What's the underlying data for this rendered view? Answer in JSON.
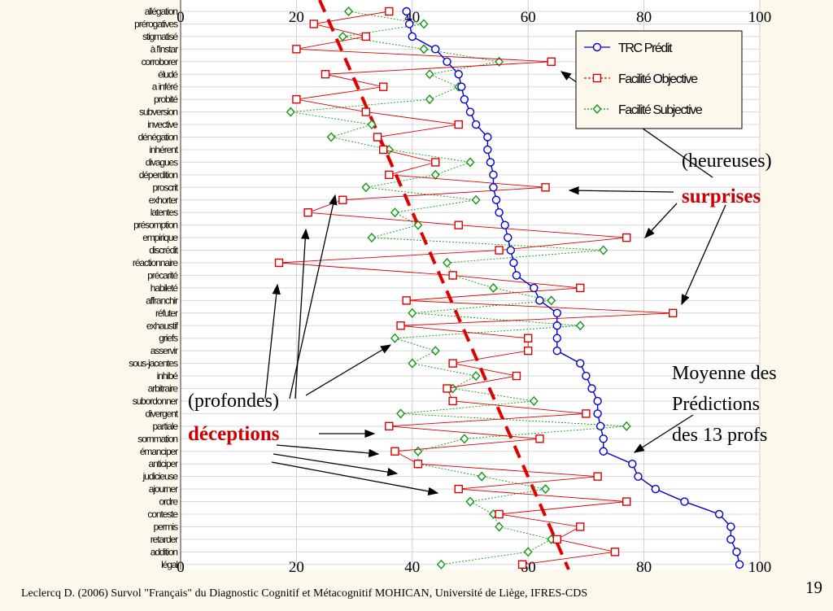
{
  "chart_data": {
    "type": "line",
    "xlim": [
      0,
      100
    ],
    "x_ticks": [
      "0",
      "20",
      "40",
      "60",
      "80",
      "100"
    ],
    "categories": [
      "allégation",
      "prérogatives",
      "stigmatisé",
      "à l'instar",
      "corroborer",
      "éludé",
      "a inféré",
      "probité",
      "subversion",
      "invective",
      "dénégation",
      "inhérent",
      "divagues",
      "déperdition",
      "proscrit",
      "exhorter",
      "latentes",
      "présomption",
      "empirique",
      "discrédit",
      "réactionnaire",
      "précarité",
      "habileté",
      "affranchir",
      "réfuter",
      "exhaustif",
      "griefs",
      "asservir",
      "sous-jacentes",
      "inhibé",
      "arbitraire",
      "subordonner",
      "divergent",
      "partiale",
      "sommation",
      "émanciper",
      "anticiper",
      "judicieuse",
      "ajourner",
      "ordre",
      "conteste",
      "permis",
      "retarder",
      "addition",
      "légal"
    ],
    "series": [
      {
        "name": "TRC Prédit",
        "color": "#0000cc",
        "marker": "circle",
        "values": [
          39,
          39.5,
          40,
          44,
          46,
          48,
          48.5,
          49,
          50,
          51,
          53,
          53,
          53.5,
          54,
          54,
          54.5,
          55,
          56,
          56.5,
          57,
          57.5,
          58,
          61,
          62,
          65,
          65,
          65,
          65,
          69,
          70,
          71,
          72,
          72,
          72.5,
          73,
          73,
          78,
          79,
          82,
          87,
          93,
          95,
          95,
          96,
          96.5
        ]
      },
      {
        "name": "Facilité Objective",
        "color": "#dd0000",
        "marker": "square",
        "values": [
          36,
          23,
          32,
          20,
          64,
          25,
          35,
          20,
          32,
          48,
          34,
          35,
          44,
          36,
          63,
          28,
          22,
          48,
          77,
          55,
          17,
          47,
          69,
          39,
          85,
          38,
          60,
          60,
          47,
          58,
          46,
          47,
          70,
          36,
          62,
          37,
          41,
          72,
          48,
          77,
          55,
          69,
          65,
          75,
          59
        ]
      },
      {
        "name": "Facilité Subjective",
        "color": "#119911",
        "marker": "diamond",
        "values": [
          29,
          42,
          28,
          42,
          55,
          43,
          48,
          43,
          19,
          33,
          26,
          36,
          50,
          44,
          32,
          51,
          37,
          41,
          33,
          73,
          46,
          47,
          54,
          64,
          40,
          69,
          37,
          44,
          40,
          51,
          47,
          61,
          38,
          77,
          49,
          41,
          41,
          52,
          63,
          50,
          54,
          55,
          64,
          60,
          45
        ]
      }
    ],
    "trend_line": {
      "type": "dashed",
      "color": "#e00000",
      "x_from": 24,
      "x_to": 67
    },
    "legend": "top-right"
  },
  "annotations": {
    "heureuses": "(heureuses)",
    "surprises": "surprises",
    "profondes": "(profondes)",
    "deceptions": "déceptions",
    "moyenne": [
      "Moyenne des",
      "Prédictions",
      "des 13 profs"
    ]
  },
  "footer": "Leclercq D. (2006) Survol \"Français\" du Diagnostic Cognitif et Métacognitif MOHICAN,  Université de Liège, IFRES-CDS",
  "slide_number": "19"
}
